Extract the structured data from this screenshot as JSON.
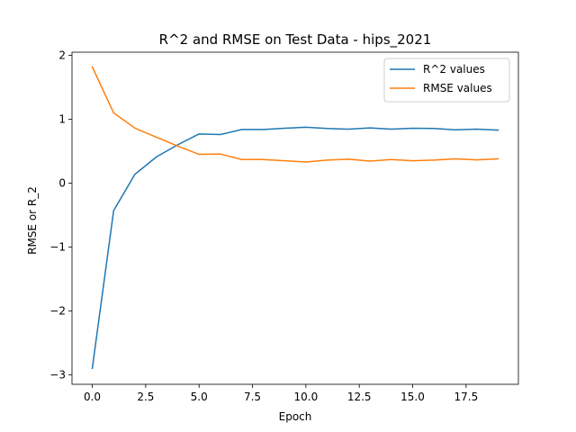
{
  "chart_data": {
    "type": "line",
    "title": "R^2 and RMSE on Test Data - hips_2021",
    "xlabel": "Epoch",
    "ylabel": "RMSE or R_2",
    "x": [
      0,
      1,
      2,
      3,
      4,
      5,
      6,
      7,
      8,
      9,
      10,
      11,
      12,
      13,
      14,
      15,
      16,
      17,
      18,
      19
    ],
    "xlim": [
      -0.95,
      19.95
    ],
    "ylim": [
      -3.15,
      2.05
    ],
    "xticks": [
      0.0,
      2.5,
      5.0,
      7.5,
      10.0,
      12.5,
      15.0,
      17.5
    ],
    "xtick_labels": [
      "0.0",
      "2.5",
      "5.0",
      "7.5",
      "10.0",
      "12.5",
      "15.0",
      "17.5"
    ],
    "yticks": [
      -3,
      -2,
      -1,
      0,
      1,
      2
    ],
    "ytick_labels": [
      "−3",
      "−2",
      "−1",
      "0",
      "1",
      "2"
    ],
    "grid": false,
    "legend_position": "upper right",
    "series": [
      {
        "name": "R^2 values",
        "color": "#1f77b4",
        "values": [
          -2.9,
          -0.43,
          0.14,
          0.41,
          0.6,
          0.77,
          0.76,
          0.84,
          0.84,
          0.86,
          0.875,
          0.855,
          0.845,
          0.865,
          0.845,
          0.86,
          0.855,
          0.835,
          0.845,
          0.83
        ]
      },
      {
        "name": "RMSE values",
        "color": "#ff7f0e",
        "values": [
          1.82,
          1.1,
          0.86,
          0.72,
          0.58,
          0.45,
          0.455,
          0.37,
          0.37,
          0.35,
          0.33,
          0.36,
          0.375,
          0.345,
          0.37,
          0.35,
          0.36,
          0.38,
          0.365,
          0.38
        ]
      }
    ]
  }
}
